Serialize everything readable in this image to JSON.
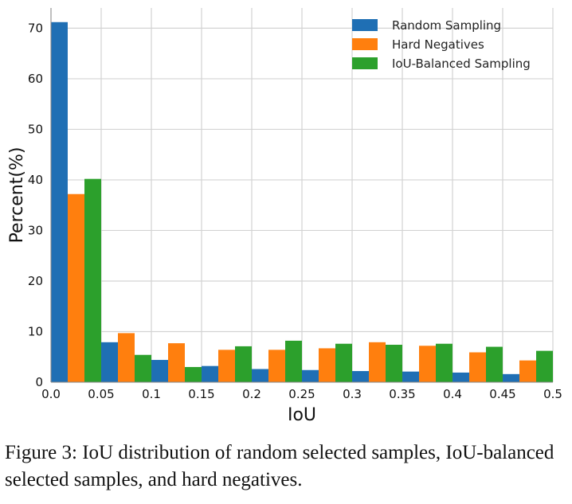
{
  "chart_data": {
    "type": "bar",
    "xlabel": "IoU",
    "ylabel": "Percent(%)",
    "xlim": [
      0,
      0.5
    ],
    "ylim": [
      0,
      74
    ],
    "grid": true,
    "legend_position": "top-right",
    "xticks": [
      "0.0",
      "0.05",
      "0.1",
      "0.15",
      "0.2",
      "0.25",
      "0.3",
      "0.35",
      "0.4",
      "0.45",
      "0.5"
    ],
    "yticks": [
      "0",
      "10",
      "20",
      "30",
      "40",
      "50",
      "60",
      "70"
    ],
    "bins": [
      [
        0.0,
        0.05
      ],
      [
        0.05,
        0.1
      ],
      [
        0.1,
        0.15
      ],
      [
        0.15,
        0.2
      ],
      [
        0.2,
        0.25
      ],
      [
        0.25,
        0.3
      ],
      [
        0.3,
        0.35
      ],
      [
        0.35,
        0.4
      ],
      [
        0.4,
        0.45
      ],
      [
        0.45,
        0.5
      ]
    ],
    "series": [
      {
        "name": "Random Sampling",
        "color": "#1f6fb4",
        "values": [
          71.2,
          7.9,
          4.4,
          3.2,
          2.6,
          2.4,
          2.2,
          2.1,
          1.9,
          1.6
        ]
      },
      {
        "name": "Hard Negatives",
        "color": "#ff7f0e",
        "values": [
          37.2,
          9.7,
          7.7,
          6.4,
          6.4,
          6.7,
          7.9,
          7.2,
          5.9,
          4.3
        ]
      },
      {
        "name": "IoU-Balanced Sampling",
        "color": "#2ca02c",
        "values": [
          40.2,
          5.4,
          3.0,
          7.1,
          8.2,
          7.6,
          7.4,
          7.6,
          7.0,
          6.2
        ]
      }
    ]
  },
  "caption": "Figure 3: IoU distribution of random selected samples, IoU-balanced selected samples, and hard negatives."
}
